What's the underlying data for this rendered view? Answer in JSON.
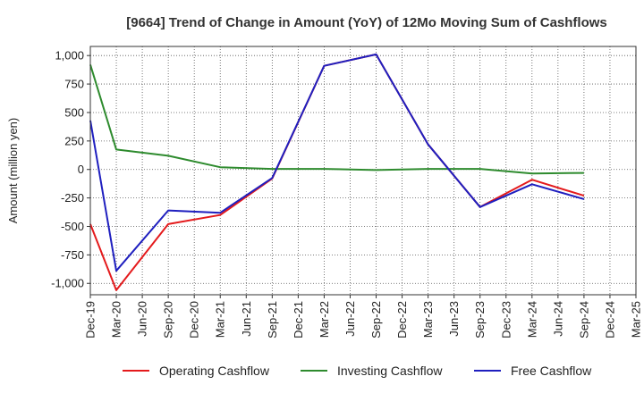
{
  "chart_data": {
    "type": "line",
    "title": "[9664]  Trend of Change in Amount (YoY) of 12Mo Moving Sum of Cashflows",
    "xlabel": "",
    "ylabel": "Amount (million yen)",
    "ylim": [
      -1100,
      1080
    ],
    "yticks": [
      1000,
      750,
      500,
      250,
      0,
      -250,
      -500,
      -750,
      -1000
    ],
    "ytick_labels": [
      "1,000",
      "750",
      "500",
      "250",
      "0",
      "-250",
      "-500",
      "-750",
      "-1,000"
    ],
    "categories": [
      "Dec-19",
      "Mar-20",
      "Jun-20",
      "Sep-20",
      "Dec-20",
      "Mar-21",
      "Jun-21",
      "Sep-21",
      "Dec-21",
      "Mar-22",
      "Jun-22",
      "Sep-22",
      "Dec-22",
      "Mar-23",
      "Jun-23",
      "Sep-23",
      "Dec-23",
      "Mar-24",
      "Jun-24",
      "Sep-24",
      "Dec-24",
      "Mar-25"
    ],
    "x_extra_tick": "Mar-25",
    "grid": true,
    "legend": "bottom",
    "series": [
      {
        "name": "Operating Cashflow",
        "color": "#e41a1c",
        "values": [
          -480,
          -1060,
          null,
          -480,
          null,
          -400,
          null,
          -80,
          null,
          910,
          null,
          1010,
          null,
          220,
          null,
          -330,
          null,
          -90,
          null,
          -230,
          null,
          null
        ]
      },
      {
        "name": "Investing Cashflow",
        "color": "#2e8b2e",
        "values": [
          920,
          175,
          null,
          120,
          null,
          20,
          null,
          5,
          null,
          5,
          null,
          -5,
          null,
          5,
          null,
          5,
          null,
          -35,
          null,
          -30,
          null,
          null
        ]
      },
      {
        "name": "Free Cashflow",
        "color": "#1f1fbf",
        "values": [
          430,
          -890,
          null,
          -360,
          null,
          -380,
          null,
          -75,
          null,
          910,
          null,
          1010,
          null,
          220,
          null,
          -330,
          null,
          -130,
          null,
          -260,
          null,
          null
        ]
      }
    ]
  }
}
